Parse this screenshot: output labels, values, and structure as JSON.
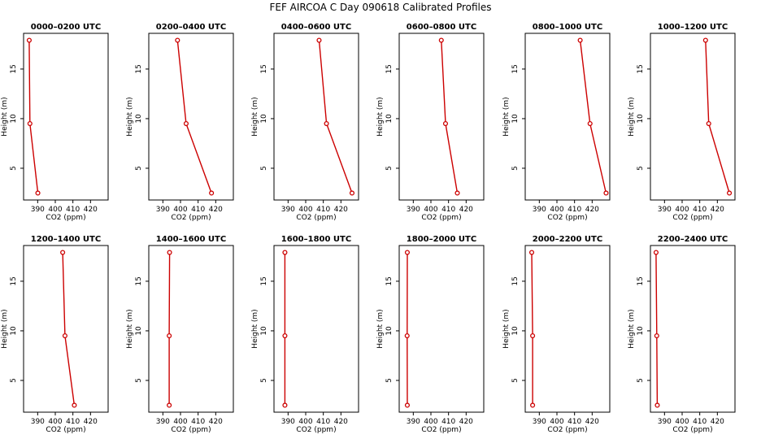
{
  "chart_data": {
    "type": "line",
    "title": "FEF AIRCOA C  Day 090618  Calibrated Profiles",
    "xlabel": "CO2 (ppm)",
    "ylabel": "Height (m)",
    "xlim": [
      382,
      430
    ],
    "ylim": [
      1.8,
      18.6
    ],
    "xticks": [
      390,
      400,
      410,
      420
    ],
    "yticks": [
      5,
      10,
      15
    ],
    "heights": [
      17.9,
      9.5,
      2.5
    ],
    "colors": {
      "line": "#cc0000",
      "axis": "#000000"
    },
    "panels": [
      {
        "title": "0000–0200 UTC",
        "values": [
          385.2,
          385.6,
          390.1
        ]
      },
      {
        "title": "0200–0400 UTC",
        "values": [
          398.3,
          403.2,
          417.6
        ]
      },
      {
        "title": "0400–0600 UTC",
        "values": [
          407.6,
          411.8,
          426.3
        ]
      },
      {
        "title": "0600–0800 UTC",
        "values": [
          405.9,
          408.3,
          415.0
        ]
      },
      {
        "title": "0800–1000 UTC",
        "values": [
          413.2,
          418.8,
          427.9
        ]
      },
      {
        "title": "1000–1200 UTC",
        "values": [
          413.3,
          415.1,
          426.8
        ]
      },
      {
        "title": "1200–1400 UTC",
        "values": [
          404.2,
          405.5,
          410.8
        ]
      },
      {
        "title": "1400–1600 UTC",
        "values": [
          393.8,
          393.6,
          393.6
        ]
      },
      {
        "title": "1600–1800 UTC",
        "values": [
          388.2,
          388.2,
          388.2
        ]
      },
      {
        "title": "1800–2000 UTC",
        "values": [
          386.6,
          386.5,
          386.6
        ]
      },
      {
        "title": "2000–2200 UTC",
        "values": [
          385.7,
          386.2,
          386.2
        ]
      },
      {
        "title": "2200–2400 UTC",
        "values": [
          385.2,
          385.6,
          385.9
        ]
      }
    ]
  }
}
